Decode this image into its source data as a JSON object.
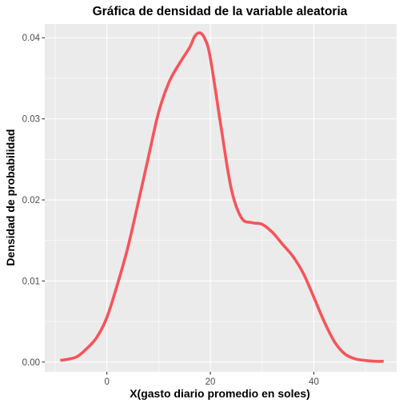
{
  "chart_data": {
    "type": "line",
    "title": "Gráfica de densidad de la variable aleatoria",
    "xlabel": "X(gasto diario promedio en soles)",
    "ylabel": "Densidad de probabilidad",
    "xlim": [
      -12,
      56
    ],
    "ylim": [
      -0.0012,
      0.0417
    ],
    "x_ticks": [
      0,
      20,
      40
    ],
    "x_tick_labels": [
      "0",
      "20",
      "40"
    ],
    "y_ticks": [
      0.0,
      0.01,
      0.02,
      0.03,
      0.04
    ],
    "y_tick_labels": [
      "0.00",
      "0.01",
      "0.02",
      "0.03",
      "0.04"
    ],
    "grid": true,
    "legend": "none",
    "colors": {
      "panel_background": "#EBEBEB",
      "grid_line": "#FFFFFF",
      "series_line": "#F8535A"
    },
    "series": [
      {
        "x": [
          -9,
          -6,
          -4,
          -2,
          0,
          2,
          4,
          6,
          8,
          10,
          12,
          14,
          16,
          17,
          18,
          19,
          20,
          22,
          24,
          26,
          28,
          30,
          32,
          34,
          36,
          38,
          40,
          42,
          44,
          46,
          48,
          50,
          52,
          53.5
        ],
        "y": [
          0.0002,
          0.0006,
          0.0016,
          0.003,
          0.0055,
          0.0095,
          0.014,
          0.0195,
          0.0252,
          0.0308,
          0.0345,
          0.0368,
          0.0388,
          0.0402,
          0.0406,
          0.0398,
          0.0375,
          0.0293,
          0.0215,
          0.0178,
          0.0172,
          0.017,
          0.016,
          0.0145,
          0.013,
          0.0109,
          0.008,
          0.005,
          0.0025,
          0.001,
          0.0004,
          0.0002,
          0.0001,
          0.0001
        ]
      }
    ]
  }
}
